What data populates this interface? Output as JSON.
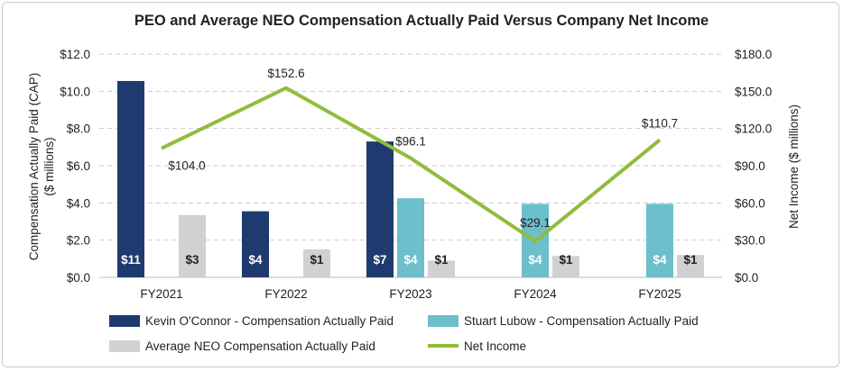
{
  "chart_data": {
    "type": "bar",
    "title": "PEO and Average NEO Compensation Actually Paid Versus Company Net Income",
    "categories": [
      "FY2021",
      "FY2022",
      "FY2023",
      "FY2024",
      "FY2025"
    ],
    "ylabel_left": [
      "Compensation Actually Paid (CAP)",
      "($ millions)"
    ],
    "ylabel_right": "Net Income ($ millions)",
    "ylim_left": [
      0,
      12
    ],
    "ylim_right": [
      0,
      180
    ],
    "yticks_left": [
      "$0.0",
      "$2.0",
      "$4.0",
      "$6.0",
      "$8.0",
      "$10.0",
      "$12.0"
    ],
    "yticks_right": [
      "$0.0",
      "$30.0",
      "$60.0",
      "$90.0",
      "$120.0",
      "$150.0",
      "$180.0"
    ],
    "grid": true,
    "legend_position": "bottom",
    "series": [
      {
        "name": "Kevin O'Connor - Compensation Actually Paid",
        "color": "#1f3a6e",
        "axis": "left",
        "values": [
          10.55,
          3.55,
          7.3,
          null,
          null
        ],
        "labels": [
          "$11",
          "$4",
          "$7",
          "",
          ""
        ]
      },
      {
        "name": "Stuart Lubow - Compensation Actually Paid",
        "color": "#6cbfcb",
        "axis": "left",
        "values": [
          null,
          null,
          4.25,
          3.95,
          3.95
        ],
        "labels": [
          "",
          "",
          "$4",
          "$4",
          "$4"
        ]
      },
      {
        "name": "Average NEO Compensation Actually Paid",
        "color": "#cfd1d3",
        "axis": "left",
        "values": [
          3.35,
          1.5,
          0.9,
          1.15,
          1.2
        ],
        "labels": [
          "$3",
          "$1",
          "$1",
          "$1",
          "$1"
        ]
      }
    ],
    "line_series": {
      "name": "Net Income",
      "color": "#8fbd3c",
      "axis": "right",
      "values": [
        104.0,
        152.6,
        96.1,
        29.1,
        110.7
      ],
      "labels": [
        "$104.0",
        "$152.6",
        "$96.1",
        "$29.1",
        "$110.7"
      ]
    }
  }
}
